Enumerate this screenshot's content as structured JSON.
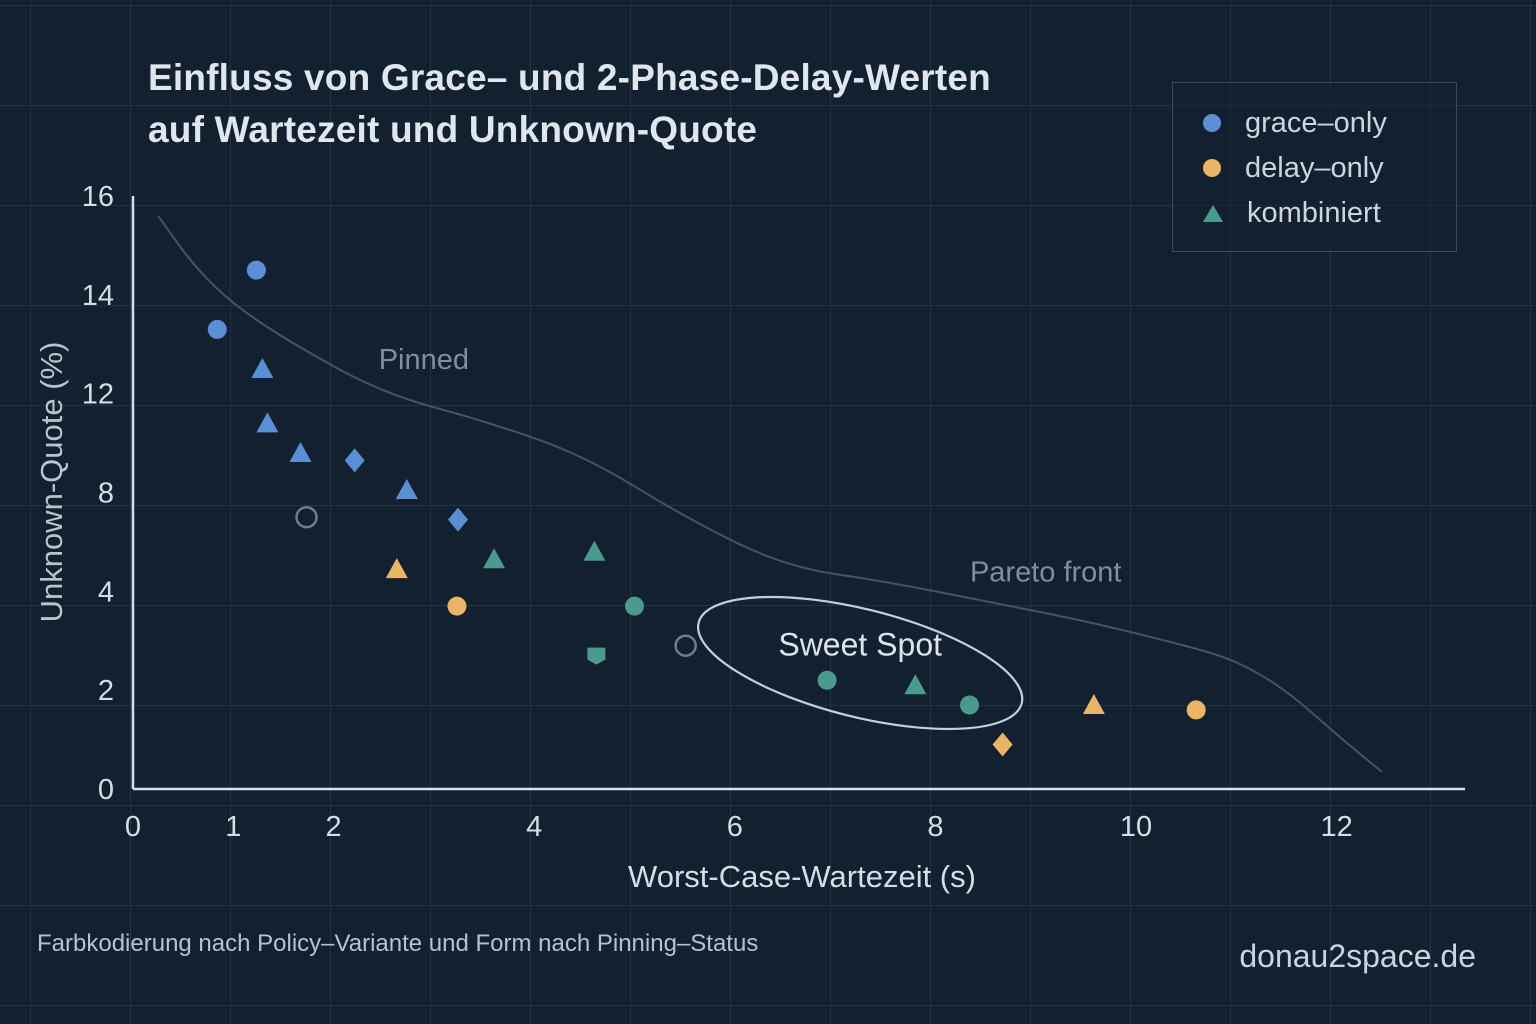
{
  "title_lines": [
    "Einfluss von Grace– und 2-Phase-Delay-Werten",
    "auf Wartezeit und Unknown-Quote"
  ],
  "legend": [
    {
      "label": "grace–only",
      "color": "#5a8fd6",
      "marker": "circle"
    },
    {
      "label": "delay–only",
      "color": "#e8b465",
      "marker": "circle"
    },
    {
      "label": "kombiniert",
      "color": "#4a9a8e",
      "marker": "triangle"
    }
  ],
  "footer_note": "Farbkodierung nach Policy–Variante und Form nach Pinning–Status",
  "brand": "donau2space.de",
  "colors": {
    "background": "#13202f",
    "grace": "#5a8fd6",
    "delay": "#e8b465",
    "kombiniert": "#4a9a8e",
    "hollow": "#6a7d92",
    "axis": "#d8e0e8",
    "curve": "#3f556b",
    "annotation": "#7d8fa2"
  },
  "chart_data": {
    "type": "scatter",
    "title": "Einfluss von Grace– und 2-Phase-Delay-Werten auf Wartezeit und Unknown-Quote",
    "xlabel": "Worst-Case-Wartezeit (s)",
    "ylabel": "Unknown-Quote (%)",
    "xlim": [
      0,
      13.3
    ],
    "ylim": [
      0,
      16
    ],
    "xticks": [
      0,
      1,
      2,
      4,
      6,
      8,
      10,
      12
    ],
    "yticks": [
      0,
      2,
      4,
      8,
      12,
      14,
      16
    ],
    "grid": true,
    "legend_position": "top-right",
    "series": [
      {
        "name": "grace–only",
        "color_key": "grace",
        "points": [
          {
            "x": 1.23,
            "y": 14.5,
            "marker": "circle"
          },
          {
            "x": 0.84,
            "y": 13.3,
            "marker": "circle"
          },
          {
            "x": 1.29,
            "y": 12.5,
            "marker": "triangle"
          },
          {
            "x": 1.34,
            "y": 10.8,
            "marker": "triangle"
          },
          {
            "x": 1.67,
            "y": 9.6,
            "marker": "triangle"
          },
          {
            "x": 2.21,
            "y": 9.3,
            "marker": "diamond"
          },
          {
            "x": 2.73,
            "y": 8.1,
            "marker": "triangle"
          },
          {
            "x": 3.24,
            "y": 6.9,
            "marker": "diamond"
          }
        ]
      },
      {
        "name": "delay–only",
        "color_key": "delay",
        "points": [
          {
            "x": 2.63,
            "y": 4.9,
            "marker": "triangle"
          },
          {
            "x": 3.23,
            "y": 3.7,
            "marker": "circle"
          },
          {
            "x": 8.67,
            "y": 0.9,
            "marker": "diamond"
          },
          {
            "x": 9.58,
            "y": 1.7,
            "marker": "triangle"
          },
          {
            "x": 10.6,
            "y": 1.6,
            "marker": "circle"
          }
        ]
      },
      {
        "name": "kombiniert",
        "color_key": "kombiniert",
        "points": [
          {
            "x": 3.6,
            "y": 5.3,
            "marker": "triangle"
          },
          {
            "x": 4.6,
            "y": 5.6,
            "marker": "triangle"
          },
          {
            "x": 5.0,
            "y": 3.7,
            "marker": "circle"
          },
          {
            "x": 4.62,
            "y": 2.7,
            "marker": "shield"
          },
          {
            "x": 6.92,
            "y": 2.2,
            "marker": "circle"
          },
          {
            "x": 7.8,
            "y": 2.1,
            "marker": "triangle"
          },
          {
            "x": 8.34,
            "y": 1.7,
            "marker": "circle"
          }
        ]
      },
      {
        "name": "unlabeled-hollow",
        "color_key": "hollow",
        "points": [
          {
            "x": 1.73,
            "y": 7.0,
            "marker": "hollow-circle"
          },
          {
            "x": 5.51,
            "y": 2.9,
            "marker": "hollow-circle"
          }
        ]
      }
    ],
    "pareto_curve": {
      "label": "Pareto front",
      "points": [
        [
          0.25,
          15.6
        ],
        [
          0.6,
          14.6
        ],
        [
          1.0,
          13.8
        ],
        [
          1.6,
          13.0
        ],
        [
          2.5,
          12.0
        ],
        [
          3.5,
          10.9
        ],
        [
          4.5,
          9.5
        ],
        [
          5.5,
          7.0
        ],
        [
          6.5,
          5.0
        ],
        [
          7.5,
          4.4
        ],
        [
          8.5,
          3.8
        ],
        [
          9.5,
          3.4
        ],
        [
          10.5,
          2.9
        ],
        [
          11.0,
          2.6
        ],
        [
          11.5,
          2.0
        ],
        [
          12.0,
          1.1
        ],
        [
          12.45,
          0.35
        ]
      ]
    },
    "annotations": [
      {
        "text": "Pinned",
        "x": 2.9,
        "y": 12.7
      },
      {
        "text": "Pareto front",
        "x": 9.1,
        "y": 4.8
      },
      {
        "text": "Sweet Spot",
        "x": 7.25,
        "y": 2.9,
        "type": "ellipse",
        "ellipse_center": [
          7.25,
          2.55
        ],
        "ellipse_rx": 1.66,
        "ellipse_ry": 1.1
      }
    ]
  }
}
